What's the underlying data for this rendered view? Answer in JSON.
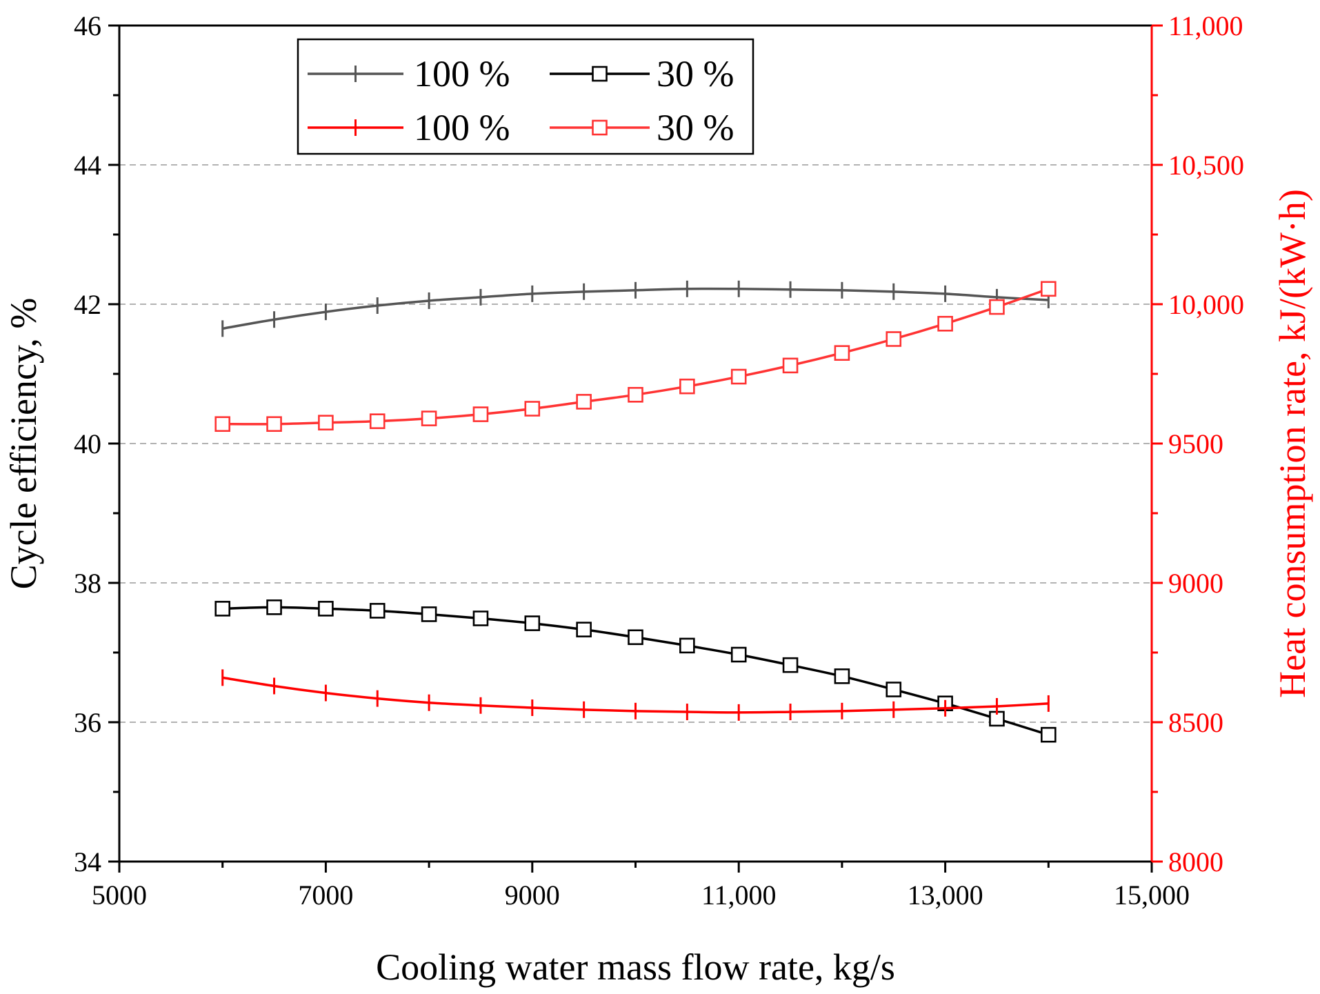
{
  "chart_data": {
    "type": "line",
    "xlabel": "Cooling water mass flow rate, kg/s",
    "ylabel_left": "Cycle efficiency, %",
    "ylabel_right": "Heat consumption rate, kJ/(kW·h)",
    "xlim": [
      5000,
      15000
    ],
    "ylim_left": [
      34,
      46
    ],
    "ylim_right": [
      8000,
      11000
    ],
    "grid": "horizontal dashed",
    "legend_position": "top-left",
    "x_ticks": [
      5000,
      7000,
      9000,
      11000,
      13000,
      15000
    ],
    "x_tick_labels": [
      "5000",
      "7000",
      "9000",
      "11,000",
      "13,000",
      "15,000"
    ],
    "y_left_ticks": [
      34,
      36,
      38,
      40,
      42,
      44,
      46
    ],
    "y_left_tick_labels": [
      "34",
      "36",
      "38",
      "40",
      "42",
      "44",
      "46"
    ],
    "y_right_ticks": [
      8000,
      8500,
      9000,
      9500,
      10000,
      10500,
      11000
    ],
    "y_right_tick_labels": [
      "8000",
      "8500",
      "9000",
      "9500",
      "10,000",
      "10,500",
      "11,000"
    ],
    "x": [
      6000,
      6500,
      7000,
      7500,
      8000,
      8500,
      9000,
      9500,
      10000,
      10500,
      11000,
      11500,
      12000,
      12500,
      13000,
      13500,
      14000
    ],
    "series": [
      {
        "name": "100 %",
        "axis": "left",
        "color": "#555555",
        "marker": "plus",
        "values": [
          41.65,
          41.78,
          41.89,
          41.98,
          42.05,
          42.1,
          42.15,
          42.18,
          42.2,
          42.22,
          42.22,
          42.21,
          42.2,
          42.18,
          42.15,
          42.1,
          42.06
        ]
      },
      {
        "name": "30 %",
        "axis": "left",
        "color": "#000000",
        "marker": "square",
        "values": [
          37.63,
          37.65,
          37.63,
          37.6,
          37.55,
          37.49,
          37.42,
          37.33,
          37.22,
          37.1,
          36.97,
          36.82,
          36.66,
          36.47,
          36.27,
          36.05,
          35.82
        ]
      },
      {
        "name": "100 %",
        "axis": "right",
        "color": "#ff0000",
        "marker": "plus",
        "values": [
          8660,
          8630,
          8605,
          8585,
          8570,
          8560,
          8552,
          8545,
          8540,
          8537,
          8535,
          8537,
          8540,
          8545,
          8550,
          8557,
          8567
        ]
      },
      {
        "name": "30 %",
        "axis": "right",
        "color": "#ff3333",
        "marker": "square",
        "values": [
          9570,
          9570,
          9575,
          9580,
          9590,
          9605,
          9625,
          9650,
          9675,
          9705,
          9740,
          9780,
          9825,
          9875,
          9930,
          9990,
          10055
        ]
      }
    ],
    "legend": [
      {
        "label": "100 %",
        "color": "#555555",
        "marker": "plus"
      },
      {
        "label": "30 %",
        "color": "#000000",
        "marker": "square"
      },
      {
        "label": "100 %",
        "color": "#ff0000",
        "marker": "plus"
      },
      {
        "label": "30 %",
        "color": "#ff3333",
        "marker": "square"
      }
    ],
    "colors": {
      "left_axis": "#000000",
      "right_axis": "#ff0000",
      "grid": "#999999"
    }
  }
}
